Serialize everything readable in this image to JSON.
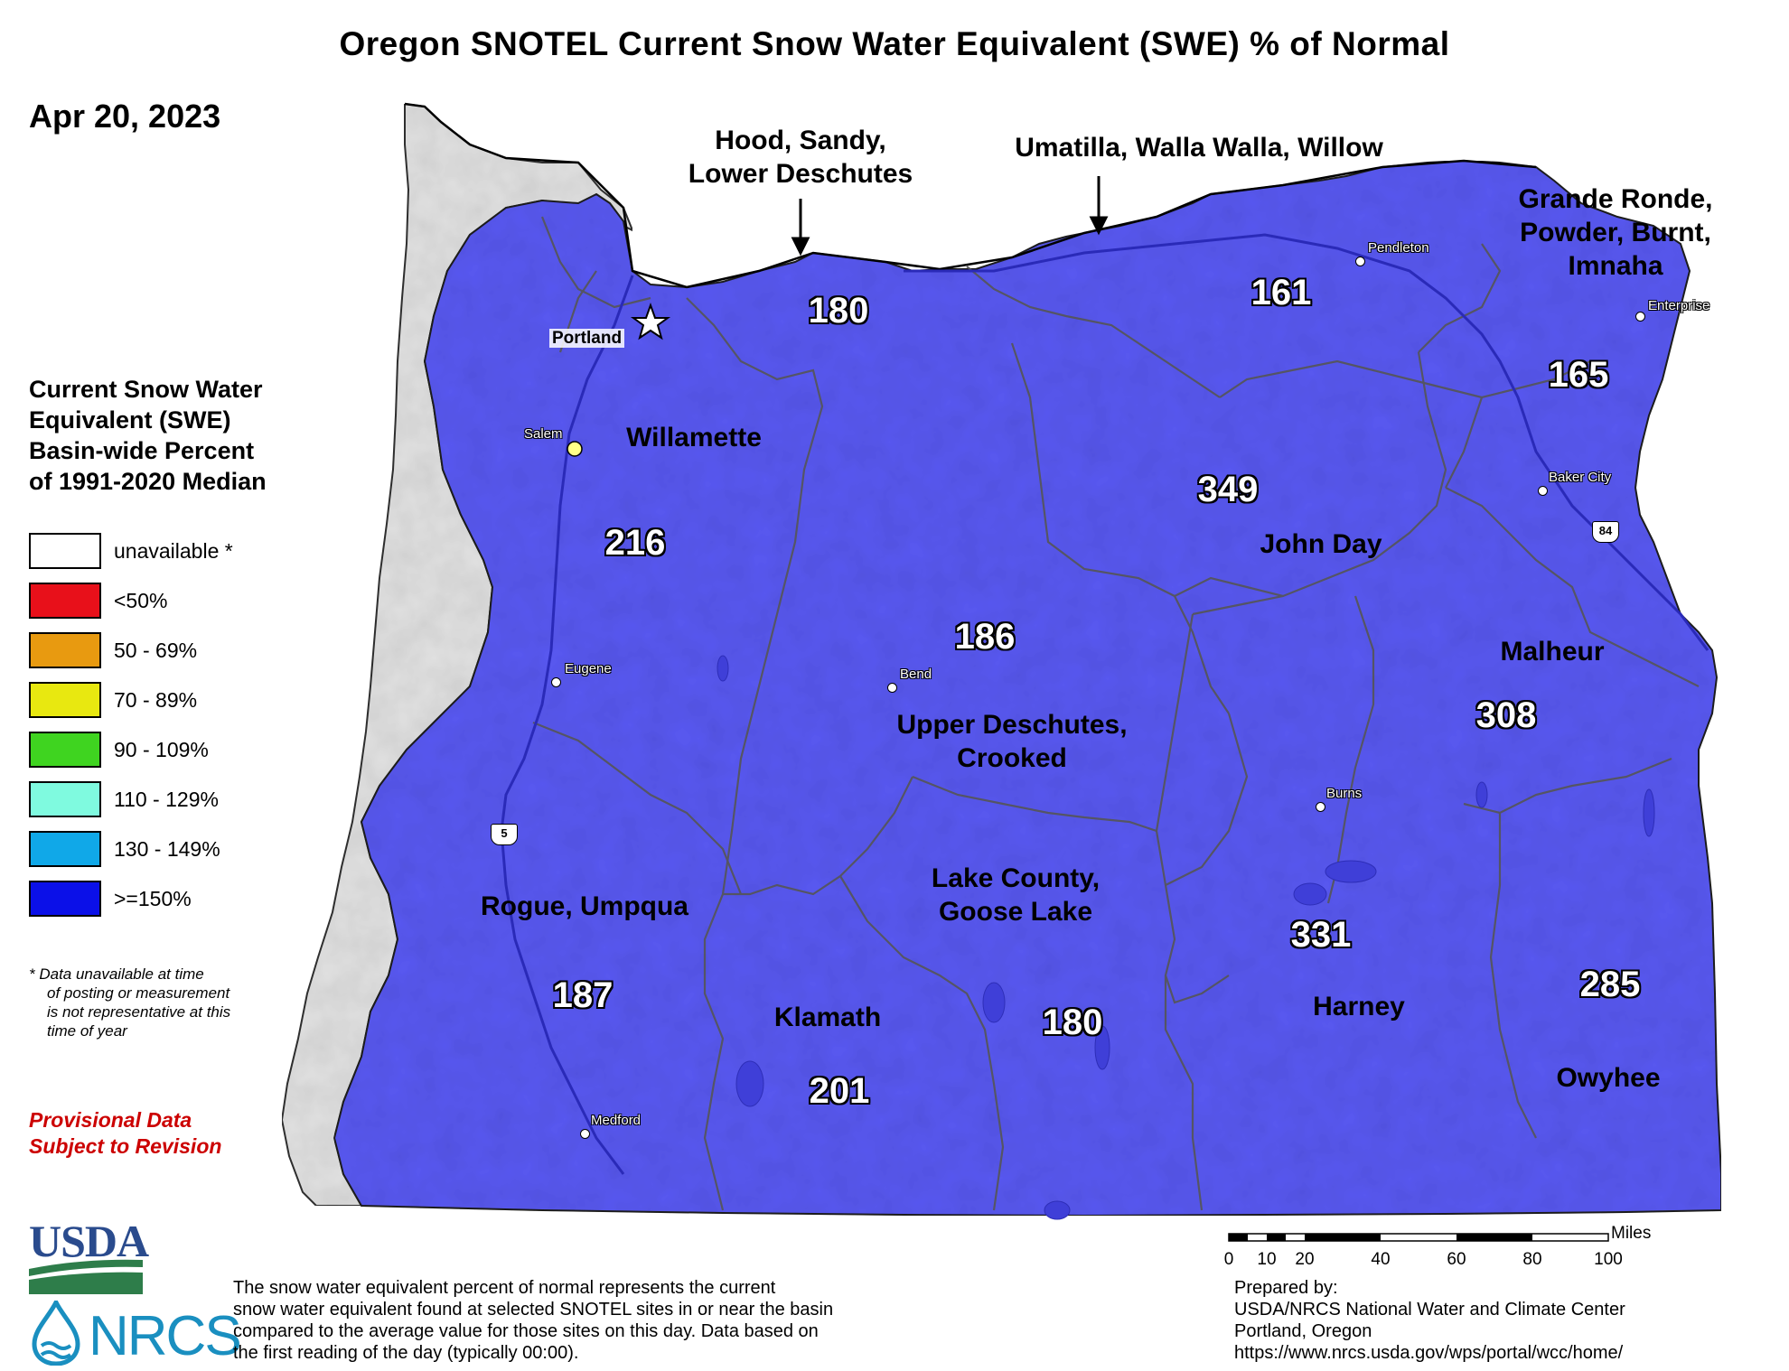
{
  "title": "Oregon SNOTEL Current Snow Water Equivalent (SWE) % of Normal",
  "date": "Apr 20, 2023",
  "colors": {
    "unavailable": "#ffffff",
    "lt50": "#e8101a",
    "50_69": "#e89a10",
    "70_89": "#e8e810",
    "90_109": "#3fd420",
    "110_129": "#7ffadf",
    "130_149": "#10a8e8",
    "ge150": "#0b10e8",
    "basin_fill": "#5a5af2",
    "coast_gray": "#e4e4e4",
    "provisional_red": "#cc0000"
  },
  "legend": {
    "title_lines": [
      "Current Snow Water",
      "Equivalent (SWE)",
      "Basin-wide Percent",
      "of 1991-2020 Median"
    ],
    "items": [
      {
        "label": "unavailable *",
        "color": "#ffffff"
      },
      {
        "label": "<50%",
        "color": "#e8101a"
      },
      {
        "label": "50 - 69%",
        "color": "#e89a10"
      },
      {
        "label": "70 - 89%",
        "color": "#e8e810"
      },
      {
        "label": "90 - 109%",
        "color": "#3fd420"
      },
      {
        "label": "110 - 129%",
        "color": "#7ffadf"
      },
      {
        "label": "130 - 149%",
        "color": "#10a8e8"
      },
      {
        "label": ">=150%",
        "color": "#0b10e8"
      }
    ]
  },
  "footnote": {
    "lines": [
      "*  Data unavailable at time",
      "of posting or measurement",
      "is not representative at this",
      "time of year"
    ]
  },
  "provisional": [
    "Provisional Data",
    "Subject to Revision"
  ],
  "top_labels": [
    {
      "lines": [
        "Hood, Sandy,",
        "Lower Deschutes"
      ]
    },
    {
      "lines": [
        "Umatilla, Walla Walla, Willow"
      ]
    }
  ],
  "basins": [
    {
      "name_lines": [
        "Grande Ronde,",
        "Powder, Burnt,",
        "Imnaha"
      ],
      "value": "165"
    },
    {
      "name_lines": [
        "Willamette"
      ],
      "value": "216"
    },
    {
      "name_lines": [
        "John Day"
      ],
      "value": "349"
    },
    {
      "name_lines": [
        "Upper Deschutes,",
        "Crooked"
      ],
      "value": "186"
    },
    {
      "name_lines": [
        "Malheur"
      ],
      "value": "308"
    },
    {
      "name_lines": [
        "Rogue, Umpqua"
      ],
      "value": "187"
    },
    {
      "name_lines": [
        "Lake County,",
        "Goose Lake"
      ],
      "value": "180"
    },
    {
      "name_lines": [
        "Klamath"
      ],
      "value": "201"
    },
    {
      "name_lines": [
        "Harney"
      ],
      "value": "331"
    },
    {
      "name_lines": [
        "Owyhee"
      ],
      "value": "285"
    }
  ],
  "extra_values": {
    "hood_sandy": "180",
    "umatilla": "161"
  },
  "cities": [
    "Portland",
    "Salem",
    "Eugene",
    "Bend",
    "Medford",
    "Pendleton",
    "Enterprise",
    "Baker City",
    "Burns"
  ],
  "highway_shields": [
    "5",
    "84"
  ],
  "scale": {
    "unit": "Miles",
    "ticks": [
      "0",
      "10",
      "20",
      "40",
      "60",
      "80",
      "100"
    ],
    "tick_values": [
      0,
      10,
      20,
      40,
      60,
      80,
      100
    ]
  },
  "logos": {
    "usda": "USDA",
    "nrcs": "NRCS"
  },
  "description_lines": [
    "The snow water equivalent percent of normal represents the current",
    "snow water equivalent found at selected SNOTEL sites in or near the basin",
    "compared to the average value for those sites on this day. Data based on",
    "the first reading of the day (typically 00:00)."
  ],
  "prepared_lines": [
    "Prepared by:",
    "USDA/NRCS National Water and Climate Center",
    "Portland, Oregon",
    "https://www.nrcs.usda.gov/wps/portal/wcc/home/"
  ]
}
